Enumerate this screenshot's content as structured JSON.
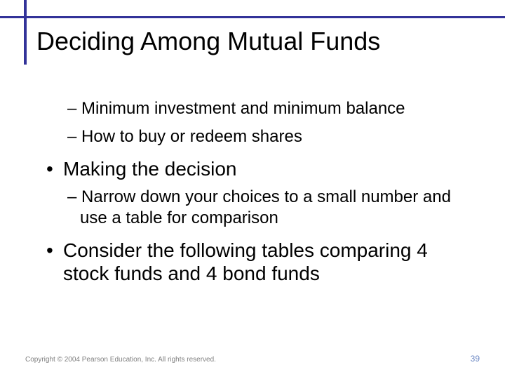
{
  "colors": {
    "accent": "#333399",
    "text": "#000000",
    "footer_left": "#808080",
    "footer_right": "#6b87c3",
    "background": "#ffffff"
  },
  "typography": {
    "title_fontsize": 36,
    "bullet_fontsize": 28,
    "sub_fontsize": 24,
    "footer_left_fontsize": 10,
    "footer_right_fontsize": 12,
    "font_family": "Arial"
  },
  "title": "Deciding Among Mutual Funds",
  "items": {
    "sub1": "– Minimum investment and minimum balance",
    "sub2": "– How to buy or redeem shares",
    "bullet1": "Making the decision",
    "sub3": "– Narrow down your choices to a small number and use a table for comparison",
    "bullet2": "Consider the following tables comparing 4 stock funds and 4 bond funds"
  },
  "footer": {
    "copyright": "Copyright © 2004 Pearson Education, Inc. All rights reserved.",
    "page": "39"
  }
}
